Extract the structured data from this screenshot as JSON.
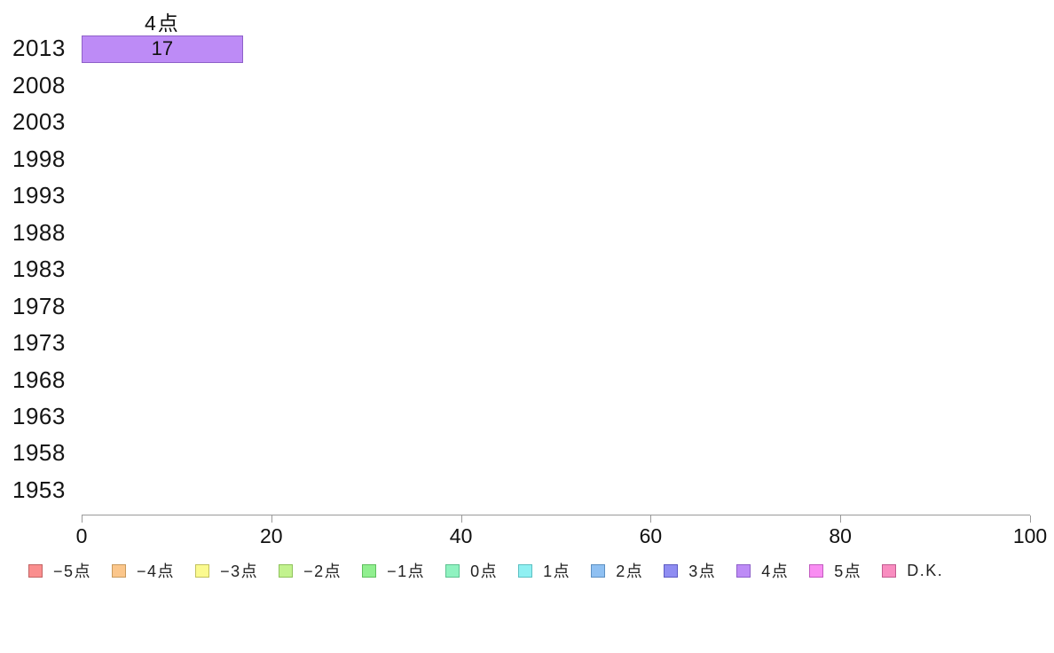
{
  "chart_data": {
    "type": "bar",
    "orientation": "horizontal",
    "title": "",
    "xlabel": "",
    "ylabel": "",
    "categories": [
      "2013",
      "2008",
      "2003",
      "1998",
      "1993",
      "1988",
      "1983",
      "1978",
      "1973",
      "1968",
      "1963",
      "1958",
      "1953"
    ],
    "xlim": [
      0,
      100
    ],
    "x_ticks": [
      "0",
      "20",
      "40",
      "60",
      "80",
      "100"
    ],
    "grid": false,
    "legend_position": "bottom",
    "bar_value_labels": true,
    "series": [
      {
        "name": "−5点",
        "fill": "#fa8e8e",
        "border": "#c26464",
        "values": [
          null,
          null,
          null,
          null,
          null,
          null,
          null,
          null,
          null,
          null,
          null,
          null,
          null
        ]
      },
      {
        "name": "−4点",
        "fill": "#fbc68b",
        "border": "#c89a5e",
        "values": [
          null,
          null,
          null,
          null,
          null,
          null,
          null,
          null,
          null,
          null,
          null,
          null,
          null
        ]
      },
      {
        "name": "−3点",
        "fill": "#fbfa8f",
        "border": "#c2c15e",
        "values": [
          null,
          null,
          null,
          null,
          null,
          null,
          null,
          null,
          null,
          null,
          null,
          null,
          null
        ]
      },
      {
        "name": "−2点",
        "fill": "#c2f28e",
        "border": "#8fc25c",
        "values": [
          null,
          null,
          null,
          null,
          null,
          null,
          null,
          null,
          null,
          null,
          null,
          null,
          null
        ]
      },
      {
        "name": "−1点",
        "fill": "#90ef8f",
        "border": "#5fbf5e",
        "values": [
          null,
          null,
          null,
          null,
          null,
          null,
          null,
          null,
          null,
          null,
          null,
          null,
          null
        ]
      },
      {
        "name": "0点",
        "fill": "#8ff2c0",
        "border": "#5dc290",
        "values": [
          null,
          null,
          null,
          null,
          null,
          null,
          null,
          null,
          null,
          null,
          null,
          null,
          null
        ]
      },
      {
        "name": "1点",
        "fill": "#8ff0f2",
        "border": "#5dc0c2",
        "values": [
          null,
          null,
          null,
          null,
          null,
          null,
          null,
          null,
          null,
          null,
          null,
          null,
          null
        ]
      },
      {
        "name": "2点",
        "fill": "#8fc0f2",
        "border": "#5d90c2",
        "values": [
          null,
          null,
          null,
          null,
          null,
          null,
          null,
          null,
          null,
          null,
          null,
          null,
          null
        ]
      },
      {
        "name": "3点",
        "fill": "#8f8df2",
        "border": "#5d5bc2",
        "values": [
          null,
          null,
          null,
          null,
          null,
          null,
          null,
          null,
          null,
          null,
          null,
          null,
          null
        ]
      },
      {
        "name": "4点",
        "fill": "#bd8bf6",
        "border": "#8e60c9",
        "values": [
          17,
          null,
          null,
          null,
          null,
          null,
          null,
          null,
          null,
          null,
          null,
          null,
          null
        ]
      },
      {
        "name": "5点",
        "fill": "#f98df2",
        "border": "#c25cbf",
        "values": [
          null,
          null,
          null,
          null,
          null,
          null,
          null,
          null,
          null,
          null,
          null,
          null,
          null
        ]
      },
      {
        "name": "D.K.",
        "fill": "#f98dc0",
        "border": "#c25c90",
        "values": [
          null,
          null,
          null,
          null,
          null,
          null,
          null,
          null,
          null,
          null,
          null,
          null,
          null
        ]
      }
    ],
    "annotations": [
      {
        "text": "4点",
        "category": "2013",
        "series": "4点",
        "position": "above-bar"
      }
    ]
  },
  "legend": {
    "items": [
      "−5点",
      "−4点",
      "−3点",
      "−2点",
      "−1点",
      "0点",
      "1点",
      "2点",
      "3点",
      "4点",
      "5点",
      "D.K."
    ]
  }
}
